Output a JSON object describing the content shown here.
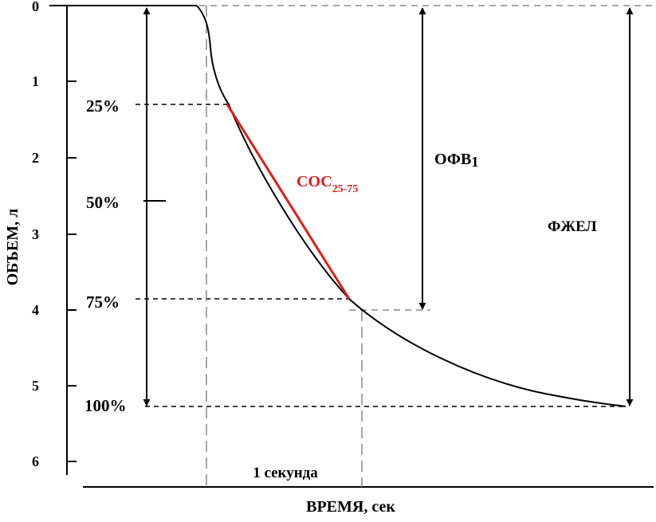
{
  "axes": {
    "y_label": "ОБЪЕМ, л",
    "x_label": "ВРЕМЯ, сек",
    "y_ticks": [
      "0",
      "1",
      "2",
      "3",
      "4",
      "5",
      "6"
    ]
  },
  "percent_marks": [
    "25%",
    "50%",
    "75%",
    "100%"
  ],
  "labels": {
    "sos_main": "СОС",
    "sos_sub": "25-75",
    "ofv_main": "ОФВ",
    "ofv_sub": "1",
    "fzhel": "ФЖЕЛ",
    "one_second": "1 секунда"
  },
  "colors": {
    "curve": "#000000",
    "sos_segment": "#e11b1b",
    "guides": "#777777"
  }
}
